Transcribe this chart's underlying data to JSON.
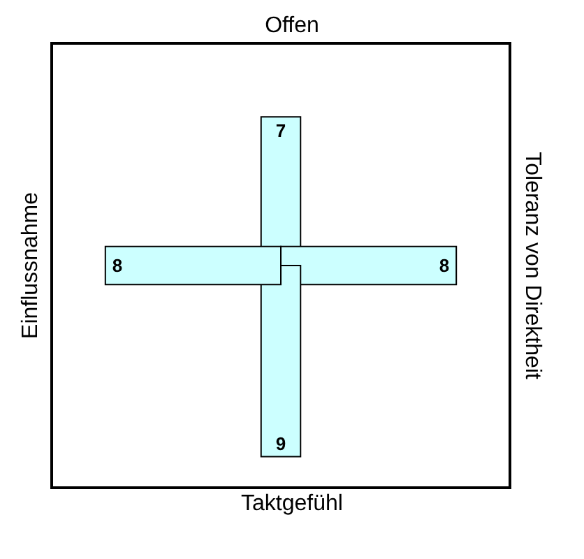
{
  "chart_data": {
    "type": "other",
    "categories": [
      "Offen",
      "Toleranz von Direktheit",
      "Taktgefühl",
      "Einflussnahme"
    ],
    "values": [
      7,
      8,
      9,
      8
    ],
    "color": "#ccffff",
    "data_labels": true
  }
}
